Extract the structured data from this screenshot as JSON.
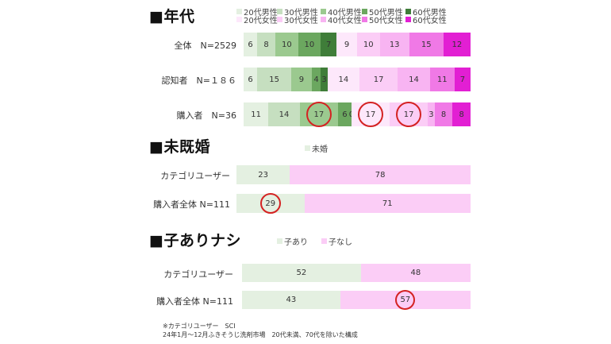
{
  "age": {
    "title": "■年代",
    "legend": [
      {
        "label": "20代男性",
        "color": "#e4f0e1"
      },
      {
        "label": "30代男性",
        "color": "#c6dfc0"
      },
      {
        "label": "40代男性",
        "color": "#9bc98f"
      },
      {
        "label": "50代男性",
        "color": "#6ba75f"
      },
      {
        "label": "60代男性",
        "color": "#3f7d39"
      },
      {
        "label": "20代女性",
        "color": "#fde8fb"
      },
      {
        "label": "30代女性",
        "color": "#fbcdf6"
      },
      {
        "label": "40代女性",
        "color": "#f8b4f2"
      },
      {
        "label": "50代女性",
        "color": "#f079e6"
      },
      {
        "label": "60代女性",
        "color": "#e21fd3"
      }
    ],
    "rows": [
      {
        "label": "全体　N=2529",
        "values": [
          6,
          8,
          10,
          10,
          7,
          9,
          10,
          13,
          15,
          12
        ],
        "labels": [
          "6",
          "8",
          "10",
          "10",
          "7",
          "9",
          "10",
          "13",
          "15",
          "12"
        ],
        "highlight": []
      },
      {
        "label": "認知者　N=１８６",
        "values": [
          6,
          15,
          9,
          4,
          3,
          14,
          17,
          14,
          11,
          7
        ],
        "labels": [
          "6",
          "15",
          "9",
          "4",
          "3",
          "14",
          "17",
          "14",
          "11",
          "7"
        ],
        "highlight": []
      },
      {
        "label": "購入者　N=36",
        "values": [
          11,
          14,
          17,
          6,
          0,
          17,
          17,
          3,
          8,
          8
        ],
        "labels": [
          "11",
          "14",
          "17",
          "6",
          "0",
          "17",
          "17",
          "3",
          "8",
          "8"
        ],
        "highlight": [
          2,
          5,
          6
        ]
      }
    ]
  },
  "marriage": {
    "title": "■未既婚",
    "legend": [
      {
        "label": "未婚",
        "color": "#e4f0e1"
      }
    ],
    "colors": [
      "#e4f0e1",
      "#fbcdf6"
    ],
    "rows": [
      {
        "label": "カテゴリユーザー",
        "values": [
          23,
          78
        ],
        "labels": [
          "23",
          "78"
        ],
        "highlight": []
      },
      {
        "label": "購入者全体 N=111",
        "values": [
          29,
          71
        ],
        "labels": [
          "29",
          "71"
        ],
        "highlight": [
          0
        ]
      }
    ]
  },
  "children": {
    "title": "■子ありナシ",
    "legend": [
      {
        "label": "子あり",
        "color": "#e4f0e1"
      },
      {
        "label": "子なし",
        "color": "#fbcdf6"
      }
    ],
    "colors": [
      "#e4f0e1",
      "#fbcdf6"
    ],
    "rows": [
      {
        "label": "カテゴリユーザー",
        "values": [
          52,
          48
        ],
        "labels": [
          "52",
          "48"
        ],
        "highlight": []
      },
      {
        "label": "購入者全体 N=111",
        "values": [
          43,
          57
        ],
        "labels": [
          "43",
          "57"
        ],
        "highlight": [
          1
        ]
      }
    ]
  },
  "footnote": {
    "line1": "※カテゴリユーザー　SCI",
    "line2": "24年1月～12月ふきそうじ洗剤市場　20代未満、70代を除いた構成"
  },
  "chart_data": [
    {
      "type": "bar",
      "title": "■年代",
      "stacked": true,
      "orientation": "horizontal",
      "categories": [
        "全体　N=2529",
        "認知者　N=１８６",
        "購入者　N=36"
      ],
      "series": [
        {
          "name": "20代男性",
          "values": [
            6,
            6,
            11
          ]
        },
        {
          "name": "30代男性",
          "values": [
            8,
            15,
            14
          ]
        },
        {
          "name": "40代男性",
          "values": [
            10,
            9,
            17
          ]
        },
        {
          "name": "50代男性",
          "values": [
            10,
            4,
            6
          ]
        },
        {
          "name": "60代男性",
          "values": [
            7,
            3,
            0
          ]
        },
        {
          "name": "20代女性",
          "values": [
            9,
            14,
            17
          ]
        },
        {
          "name": "30代女性",
          "values": [
            10,
            17,
            17
          ]
        },
        {
          "name": "40代女性",
          "values": [
            13,
            14,
            3
          ]
        },
        {
          "name": "50代女性",
          "values": [
            15,
            11,
            8
          ]
        },
        {
          "name": "60代女性",
          "values": [
            12,
            7,
            8
          ]
        }
      ],
      "legend": "top"
    },
    {
      "type": "bar",
      "title": "■未既婚",
      "stacked": true,
      "orientation": "horizontal",
      "categories": [
        "カテゴリユーザー",
        "購入者全体 N=111"
      ],
      "series": [
        {
          "name": "未婚",
          "values": [
            23,
            29
          ]
        },
        {
          "values": [
            78,
            71
          ]
        }
      ],
      "legend": "top"
    },
    {
      "type": "bar",
      "title": "■子ありナシ",
      "stacked": true,
      "orientation": "horizontal",
      "categories": [
        "カテゴリユーザー",
        "購入者全体 N=111"
      ],
      "series": [
        {
          "name": "子あり",
          "values": [
            52,
            43
          ]
        },
        {
          "name": "子なし",
          "values": [
            48,
            57
          ]
        }
      ],
      "legend": "top"
    }
  ]
}
